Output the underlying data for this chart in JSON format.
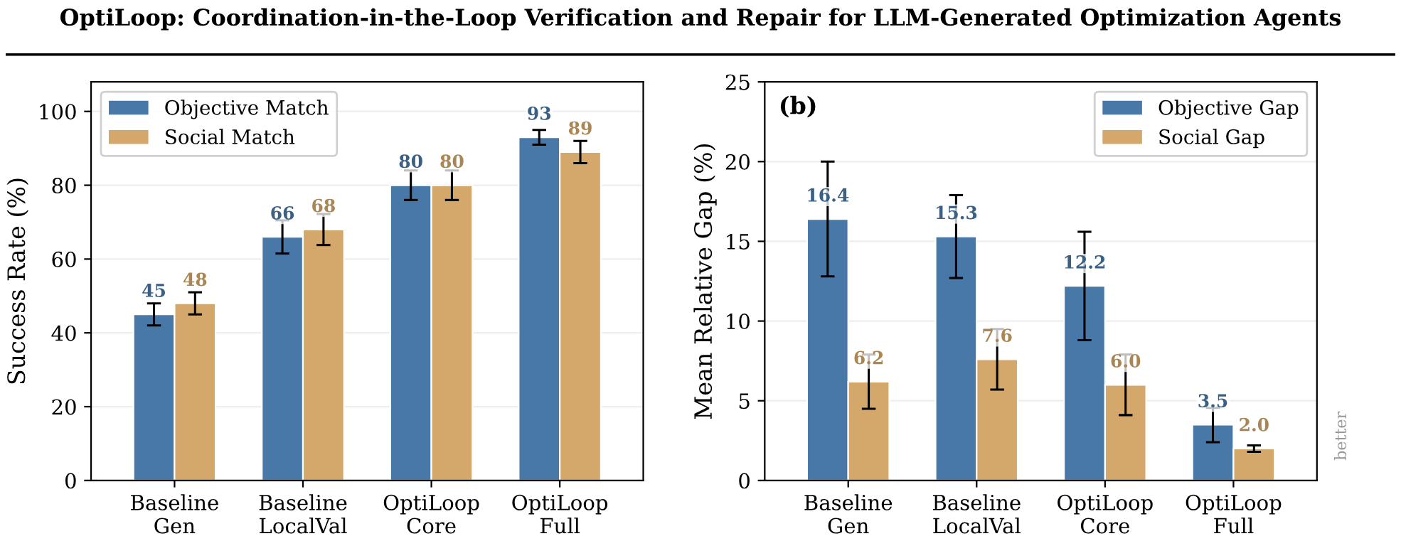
{
  "chart_data": [
    {
      "type": "bar",
      "title": "OptiLoop: Coordination-in-the-Loop Verification and Repair for LLM-Generated Optimization Agents",
      "ylabel": "Success Rate (%)",
      "categories": [
        "Baseline\nGen",
        "Baseline\nLocalVal",
        "OptiLoop\nCore",
        "OptiLoop\nFull"
      ],
      "series": [
        {
          "name": "Objective Match",
          "color": "#4878a8",
          "values": [
            45,
            66,
            80,
            93
          ],
          "errors": [
            3,
            4.5,
            4,
            2
          ]
        },
        {
          "name": "Social Match",
          "color": "#d4a76a",
          "values": [
            48,
            68,
            80,
            89
          ],
          "errors": [
            3,
            4.2,
            4,
            3
          ]
        }
      ],
      "ylim": [
        0,
        108
      ],
      "yticks": [
        0,
        20,
        40,
        60,
        80,
        100
      ],
      "grid": "y",
      "legend": "top left",
      "data_labels": true
    },
    {
      "type": "bar",
      "ylabel": "Mean Relative Gap (%)",
      "categories": [
        "Baseline\nGen",
        "Baseline\nLocalVal",
        "OptiLoop\nCore",
        "OptiLoop\nFull"
      ],
      "series": [
        {
          "name": "Objective Gap",
          "color": "#4878a8",
          "values": [
            16.4,
            15.3,
            12.2,
            3.5
          ],
          "value_labels": [
            "16.4",
            "15.3",
            "12.2",
            "3.5"
          ],
          "errors": [
            [
              12.8,
              20.0
            ],
            [
              12.7,
              17.9
            ],
            [
              8.8,
              15.6
            ],
            [
              2.4,
              4.55
            ]
          ]
        },
        {
          "name": "Social Gap",
          "color": "#d4a76a",
          "values": [
            6.2,
            7.6,
            6.0,
            2.0
          ],
          "value_labels": [
            "6.2",
            "7.6",
            "6.0",
            "2.0"
          ],
          "errors": [
            [
              4.5,
              7.9
            ],
            [
              5.7,
              9.5
            ],
            [
              4.1,
              7.9
            ],
            [
              1.8,
              2.2
            ]
          ]
        }
      ],
      "ylim": [
        0,
        25
      ],
      "yticks": [
        0,
        5,
        10,
        15,
        20,
        25
      ],
      "grid": "y",
      "legend": "top right",
      "annotations": [
        "(b)",
        "better"
      ]
    }
  ]
}
